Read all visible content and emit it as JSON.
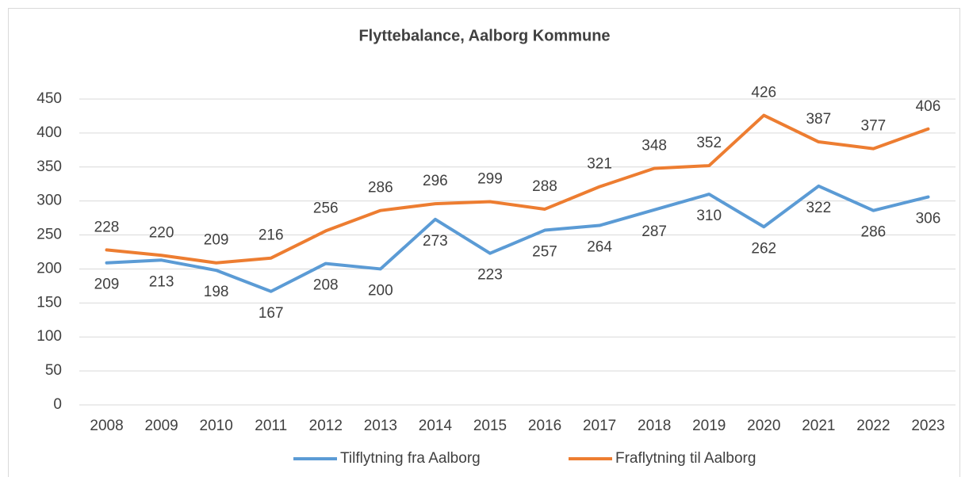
{
  "chart_data": {
    "type": "line",
    "title": "Flyttebalance, Aalborg Kommune",
    "categories": [
      "2008",
      "2009",
      "2010",
      "2011",
      "2012",
      "2013",
      "2014",
      "2015",
      "2016",
      "2017",
      "2018",
      "2019",
      "2020",
      "2021",
      "2022",
      "2023"
    ],
    "series": [
      {
        "name": "Tilflytning fra Aalborg",
        "color": "#5b9bd5",
        "values": [
          209,
          213,
          198,
          167,
          208,
          200,
          273,
          223,
          257,
          264,
          287,
          310,
          262,
          322,
          286,
          306
        ]
      },
      {
        "name": "Fraflytning til Aalborg",
        "color": "#ed7d31",
        "values": [
          228,
          220,
          209,
          216,
          256,
          286,
          296,
          299,
          288,
          321,
          348,
          352,
          426,
          387,
          377,
          406
        ]
      }
    ],
    "ylim": [
      0,
      450
    ],
    "yticks": [
      0,
      50,
      100,
      150,
      200,
      250,
      300,
      350,
      400,
      450
    ],
    "grid": true,
    "legend": "bottom"
  }
}
